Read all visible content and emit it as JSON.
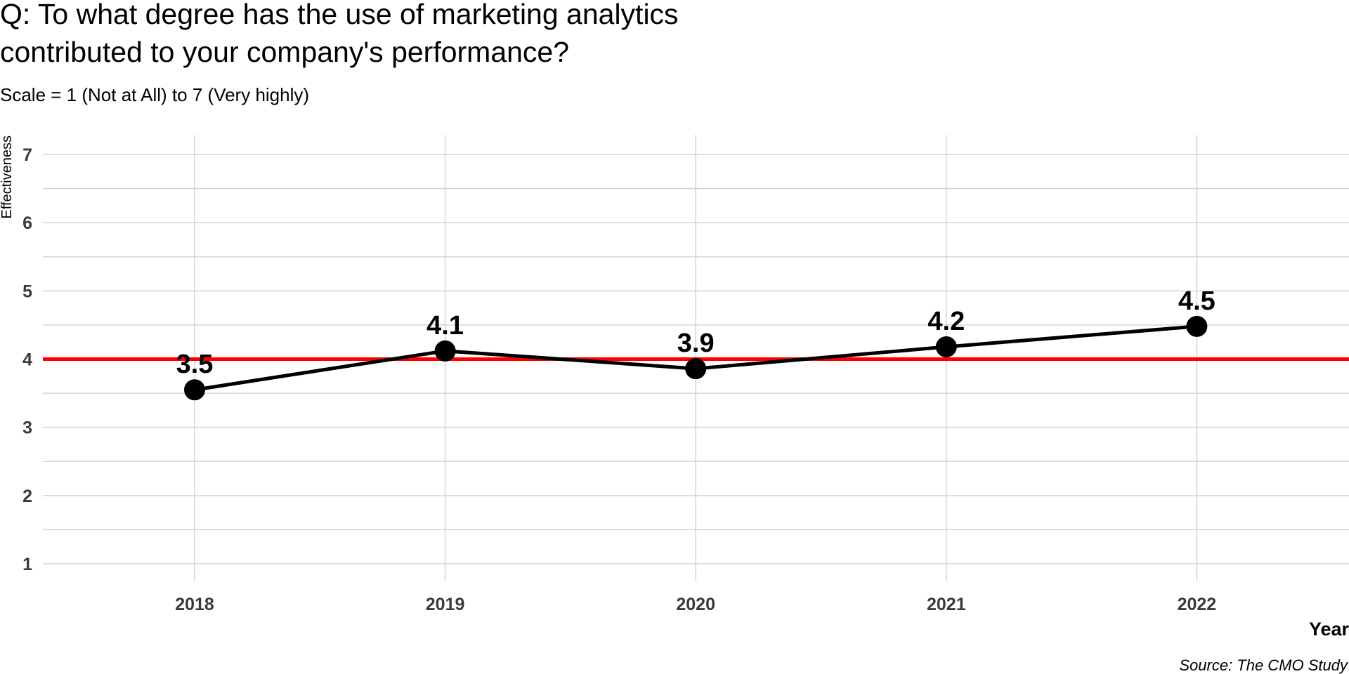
{
  "chart_data": {
    "type": "line",
    "title": "Q: To what degree has the use of marketing analytics contributed to your company's performance?",
    "title_lines": [
      "Q: To what degree has the use of marketing analytics",
      "contributed to your company's performance?"
    ],
    "subtitle": "Scale = 1 (Not at All) to 7 (Very highly)",
    "xlabel": "Year",
    "ylabel": "Effectiveness",
    "caption": "Source: The CMO Study",
    "categories": [
      "2018",
      "2019",
      "2020",
      "2021",
      "2022"
    ],
    "values": [
      3.55,
      4.12,
      3.86,
      4.18,
      4.48
    ],
    "data_labels": [
      "3.5",
      "4.1",
      "3.9",
      "4.2",
      "4.5"
    ],
    "yticks": [
      "1",
      "2",
      "3",
      "4",
      "5",
      "6",
      "7"
    ],
    "ylim": [
      1,
      7
    ],
    "reference_line": {
      "value": 4,
      "color": "#ff0000"
    },
    "series_color": "#000000",
    "grid": true,
    "legend": "none"
  }
}
